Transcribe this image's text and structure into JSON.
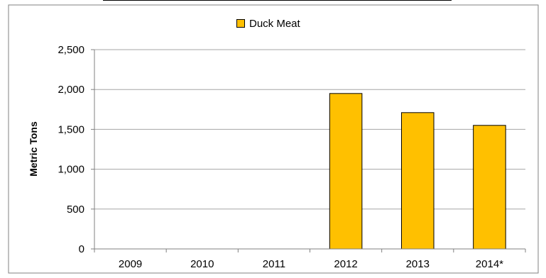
{
  "chart_data": {
    "type": "bar",
    "title": "",
    "xlabel": "",
    "ylabel": "Metric Tons",
    "categories": [
      "2009",
      "2010",
      "2011",
      "2012",
      "2013",
      "2014*"
    ],
    "series": [
      {
        "name": "Duck Meat",
        "values": [
          0,
          0,
          0,
          1950,
          1710,
          1550
        ]
      }
    ],
    "ylim": [
      0,
      2500
    ],
    "yticks": [
      0,
      500,
      1000,
      1500,
      2000,
      2500
    ],
    "ytick_labels": [
      "0",
      "500",
      "1,000",
      "1,500",
      "2,000",
      "2,500"
    ],
    "grid": true,
    "legend": "top-center",
    "colors": {
      "bar": "#FFC000",
      "bar_edge": "#000000",
      "grid": "#A6A6A6",
      "axis": "#808080",
      "frame": "#808080"
    }
  }
}
